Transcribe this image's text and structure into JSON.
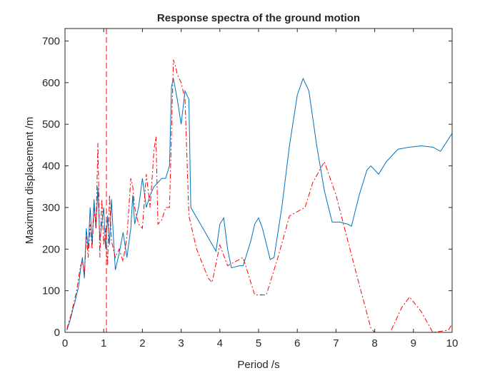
{
  "chart_data": {
    "type": "line",
    "title": "Response spectra of the ground motion",
    "x_label": "Period /s",
    "y_label": "Maximum displacement /m",
    "xlim": [
      0,
      10
    ],
    "ylim": [
      0,
      730
    ],
    "xticks": [
      0,
      1,
      2,
      3,
      4,
      5,
      6,
      7,
      8,
      9,
      10
    ],
    "yticks": [
      0,
      100,
      200,
      300,
      400,
      500,
      600,
      700
    ],
    "box": true,
    "reference_line": {
      "x": 1.07,
      "color": "#ff0000"
    },
    "series": [
      {
        "color": "#0072bd",
        "style": "solid",
        "x": [
          0.05,
          0.1,
          0.15,
          0.2,
          0.25,
          0.3,
          0.35,
          0.4,
          0.45,
          0.5,
          0.55,
          0.6,
          0.65,
          0.7,
          0.75,
          0.8,
          0.85,
          0.9,
          0.95,
          1.0,
          1.05,
          1.1,
          1.15,
          1.2,
          1.25,
          1.3,
          1.4,
          1.5,
          1.6,
          1.7,
          1.75,
          1.8,
          1.9,
          2.0,
          2.1,
          2.2,
          2.3,
          2.4,
          2.5,
          2.6,
          2.7,
          2.75,
          2.8,
          2.9,
          2.95,
          3.0,
          3.1,
          3.2,
          3.25,
          3.5,
          3.9,
          4.0,
          4.1,
          4.2,
          4.3,
          4.5,
          4.6,
          4.8,
          4.9,
          5.0,
          5.1,
          5.3,
          5.4,
          5.6,
          5.8,
          6.0,
          6.15,
          6.3,
          6.5,
          6.7,
          6.9,
          7.1,
          7.3,
          7.4,
          7.6,
          7.8,
          7.9,
          8.1,
          8.3,
          8.6,
          8.9,
          9.2,
          9.5,
          9.7,
          10.0
        ],
        "values": [
          5,
          20,
          35,
          55,
          70,
          90,
          110,
          150,
          180,
          130,
          250,
          200,
          300,
          210,
          320,
          250,
          350,
          220,
          260,
          300,
          200,
          280,
          210,
          320,
          230,
          150,
          190,
          240,
          180,
          250,
          330,
          260,
          300,
          370,
          300,
          330,
          350,
          360,
          370,
          370,
          400,
          590,
          610,
          560,
          530,
          500,
          580,
          560,
          300,
          260,
          195,
          260,
          275,
          200,
          155,
          160,
          160,
          220,
          260,
          275,
          250,
          175,
          180,
          300,
          450,
          570,
          610,
          580,
          450,
          340,
          265,
          265,
          260,
          255,
          330,
          390,
          400,
          380,
          410,
          440,
          445,
          448,
          445,
          435,
          478
        ]
      },
      {
        "color": "#ff0000",
        "style": "dashdot",
        "x": [
          0.05,
          0.1,
          0.15,
          0.2,
          0.25,
          0.3,
          0.35,
          0.4,
          0.45,
          0.5,
          0.55,
          0.6,
          0.65,
          0.7,
          0.75,
          0.8,
          0.85,
          0.9,
          0.95,
          1.0,
          1.05,
          1.1,
          1.15,
          1.2,
          1.3,
          1.4,
          1.5,
          1.6,
          1.7,
          1.75,
          1.8,
          1.9,
          2.0,
          2.1,
          2.2,
          2.3,
          2.35,
          2.4,
          2.5,
          2.6,
          2.7,
          2.8,
          2.85,
          2.9,
          3.0,
          3.1,
          3.2,
          3.4,
          3.7,
          3.8,
          4.0,
          4.2,
          4.4,
          4.6,
          4.9,
          5.2,
          5.5,
          5.8,
          6.2,
          6.4,
          6.7,
          7.0,
          7.5,
          7.9,
          8.0,
          8.4,
          8.7,
          8.9,
          9.2,
          9.5,
          9.9,
          10.0
        ],
        "values": [
          8,
          25,
          40,
          60,
          80,
          100,
          130,
          160,
          170,
          140,
          230,
          180,
          260,
          200,
          300,
          250,
          455,
          180,
          320,
          210,
          250,
          160,
          330,
          220,
          180,
          200,
          170,
          230,
          370,
          350,
          300,
          260,
          250,
          380,
          300,
          440,
          470,
          260,
          270,
          300,
          300,
          655,
          640,
          620,
          600,
          560,
          280,
          200,
          130,
          120,
          210,
          160,
          170,
          180,
          90,
          90,
          180,
          280,
          300,
          360,
          410,
          330,
          150,
          10,
          0,
          0,
          60,
          85,
          50,
          0,
          5,
          20
        ]
      }
    ]
  }
}
